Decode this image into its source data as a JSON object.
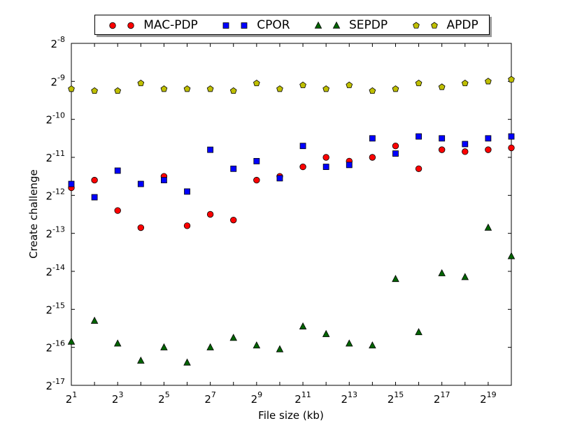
{
  "chart_data": {
    "type": "scatter",
    "xlabel": "File size (kb)",
    "ylabel": "Create challenge",
    "x_scale": "log2",
    "y_scale": "log2",
    "xlim_exponent": [
      1,
      20
    ],
    "ylim_exponent": [
      -17,
      -8
    ],
    "x_tick_labels": [
      "2^1",
      "2^3",
      "2^5",
      "2^7",
      "2^9",
      "2^11",
      "2^13",
      "2^15",
      "2^17",
      "2^19"
    ],
    "y_tick_labels": [
      "2^-8",
      "2^-9",
      "2^-10",
      "2^-11",
      "2^-12",
      "2^-13",
      "2^-14",
      "2^-15",
      "2^-16",
      "2^-17"
    ],
    "grid": false,
    "legend_position": "top",
    "x": [
      2,
      4,
      8,
      16,
      32,
      64,
      128,
      256,
      512,
      1024,
      2048,
      4096,
      8192,
      16384,
      32768,
      65536,
      131072,
      262144,
      524288,
      1048576
    ],
    "series": [
      {
        "name": "MAC-PDP",
        "color": "#ff0000",
        "marker": "circle",
        "y_log2": [
          -11.8,
          -11.6,
          -12.4,
          -12.85,
          -11.5,
          -12.8,
          -12.5,
          -12.65,
          -11.6,
          -11.5,
          -11.25,
          -11.0,
          -11.1,
          -11.0,
          -10.7,
          -11.3,
          -10.8,
          -10.85,
          -10.8,
          -10.75
        ]
      },
      {
        "name": "CPOR",
        "color": "#0000ff",
        "marker": "square",
        "y_log2": [
          -11.7,
          -12.05,
          -11.35,
          -11.7,
          -11.6,
          -11.9,
          -10.8,
          -11.3,
          -11.1,
          -11.55,
          -10.7,
          -11.25,
          -11.2,
          -10.5,
          -10.9,
          -10.45,
          -10.5,
          -10.65,
          -10.5,
          -10.45
        ]
      },
      {
        "name": "SEPDP",
        "color": "#006400",
        "marker": "triangle",
        "y_log2": [
          -15.85,
          -15.3,
          -15.9,
          -16.35,
          -16.0,
          -16.4,
          -16.0,
          -15.75,
          -15.95,
          -16.05,
          -15.45,
          -15.65,
          -15.9,
          -15.95,
          -14.2,
          -15.6,
          -14.05,
          -14.15,
          -12.85,
          -13.6
        ]
      },
      {
        "name": "APDP",
        "color": "#bfbf00",
        "marker": "pentagon",
        "y_log2": [
          -9.2,
          -9.25,
          -9.25,
          -9.05,
          -9.2,
          -9.2,
          -9.2,
          -9.25,
          -9.05,
          -9.2,
          -9.1,
          -9.2,
          -9.1,
          -9.25,
          -9.2,
          -9.05,
          -9.15,
          -9.05,
          -9.0,
          -8.95
        ]
      }
    ]
  }
}
